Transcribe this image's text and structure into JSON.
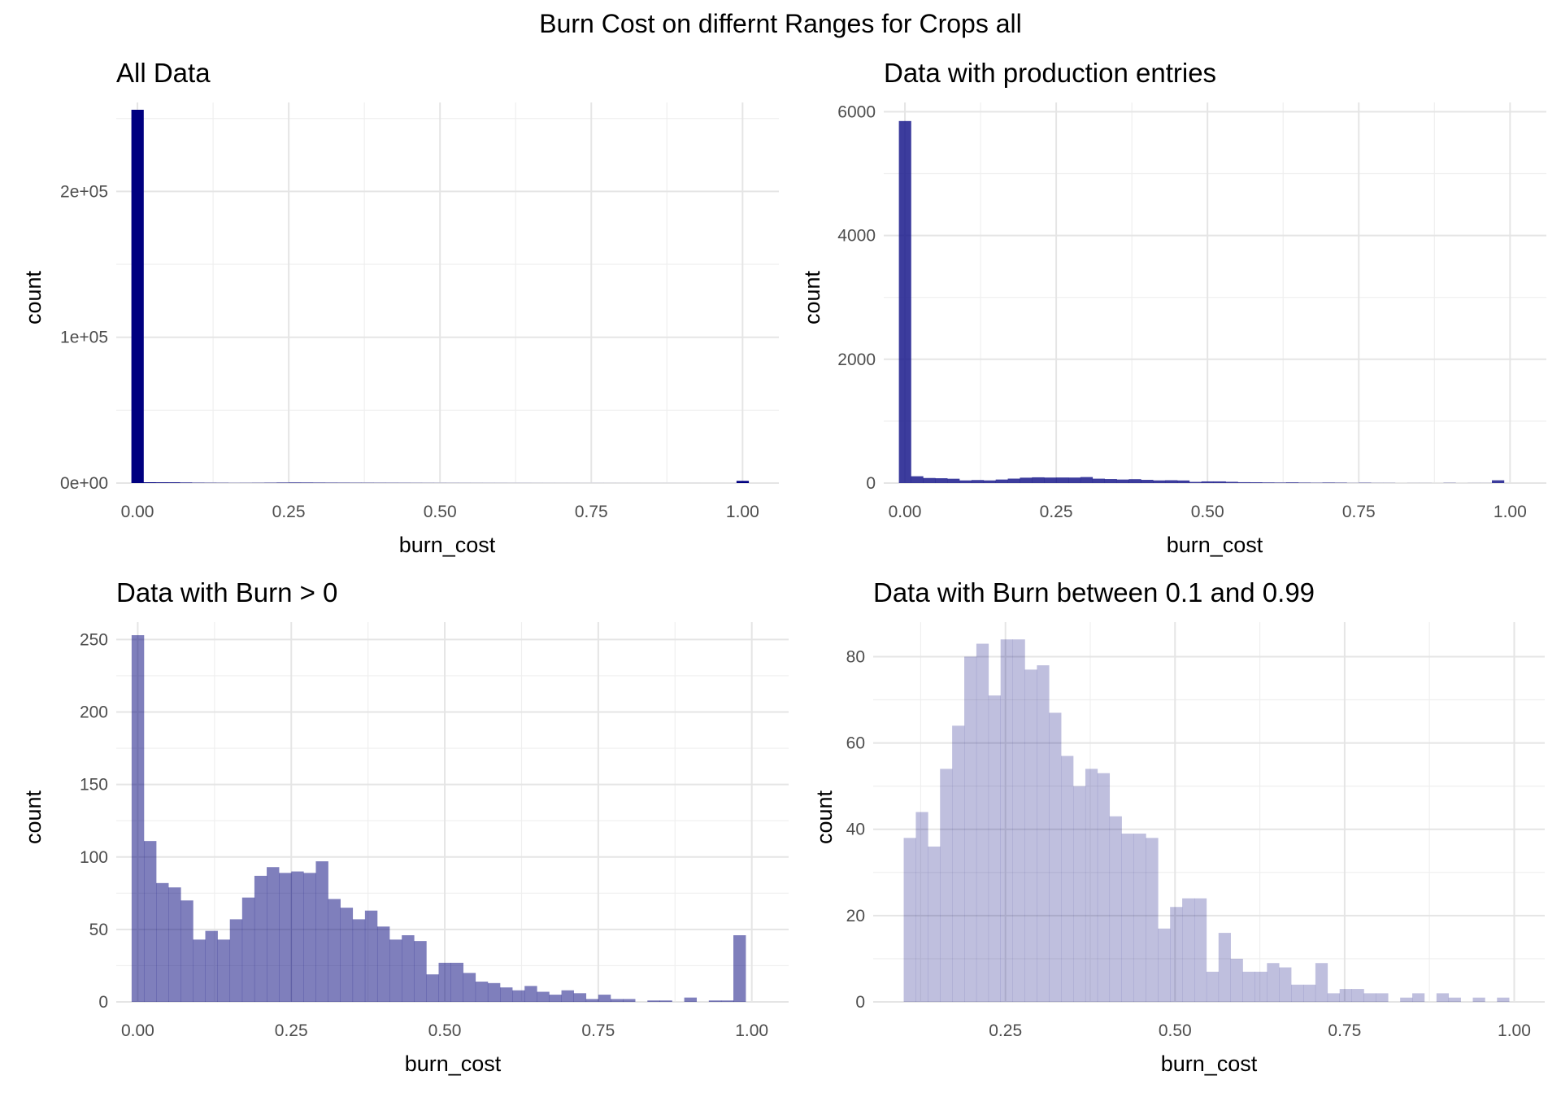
{
  "figure": {
    "title": "Burn Cost on differnt Ranges for Crops all"
  },
  "chart_data": [
    {
      "type": "bar",
      "title": "All Data",
      "xlabel": "burn_cost",
      "ylabel": "count",
      "xlim": [
        -0.035,
        1.06
      ],
      "ylim": [
        0,
        261000
      ],
      "x_ticks": [
        0,
        0.25,
        0.5,
        0.75,
        1
      ],
      "x_tick_labels": [
        "0.00",
        "0.25",
        "0.50",
        "0.75",
        "1.00"
      ],
      "y_ticks": [
        0,
        100000,
        200000
      ],
      "y_tick_labels": [
        "0e+00",
        "1e+05",
        "2e+05"
      ],
      "bin_width": 0.02,
      "bin_start": -0.01,
      "values": [
        256000,
        550,
        500,
        480,
        350,
        220,
        180,
        150,
        100,
        120,
        150,
        200,
        280,
        330,
        300,
        250,
        220,
        200,
        180,
        170,
        150,
        140,
        130,
        110,
        90,
        80,
        70,
        65,
        60,
        55,
        50,
        45,
        40,
        35,
        30,
        28,
        26,
        24,
        22,
        20,
        18,
        16,
        14,
        12,
        12,
        10,
        10,
        8,
        8,
        6,
        1500
      ],
      "color": "#000080",
      "opacity": 1.0,
      "grid": true
    },
    {
      "type": "bar",
      "title": "Data with production entries",
      "xlabel": "burn_cost",
      "ylabel": "count",
      "xlim": [
        -0.035,
        1.06
      ],
      "ylim": [
        0,
        6150
      ],
      "x_ticks": [
        0,
        0.25,
        0.5,
        0.75,
        1
      ],
      "x_tick_labels": [
        "0.00",
        "0.25",
        "0.50",
        "0.75",
        "1.00"
      ],
      "y_ticks": [
        0,
        2000,
        4000,
        6000
      ],
      "y_tick_labels": [
        "0",
        "2000",
        "4000",
        "6000"
      ],
      "bin_width": 0.02,
      "bin_start": -0.01,
      "values": [
        5850,
        110,
        82,
        78,
        70,
        43,
        49,
        43,
        57,
        72,
        87,
        93,
        89,
        90,
        89,
        97,
        71,
        65,
        57,
        63,
        52,
        43,
        46,
        42,
        19,
        27,
        27,
        20,
        14,
        13,
        10,
        8,
        11,
        7,
        5,
        8,
        6,
        2,
        5,
        2,
        2,
        0,
        1,
        1,
        0,
        3,
        0,
        1,
        1,
        45
      ],
      "color": "#1a1a8c",
      "opacity": 0.85,
      "grid": true
    },
    {
      "type": "bar",
      "title": "Data with Burn > 0",
      "xlabel": "burn_cost",
      "ylabel": "count",
      "xlim": [
        -0.035,
        1.06
      ],
      "ylim": [
        0,
        262
      ],
      "x_ticks": [
        0,
        0.25,
        0.5,
        0.75,
        1
      ],
      "x_tick_labels": [
        "0.00",
        "0.25",
        "0.50",
        "0.75",
        "1.00"
      ],
      "y_ticks": [
        0,
        50,
        100,
        150,
        200,
        250
      ],
      "y_tick_labels": [
        "0",
        "50",
        "100",
        "150",
        "200",
        "250"
      ],
      "bin_width": 0.02,
      "bin_start": -0.01,
      "values": [
        253,
        111,
        82,
        79,
        70,
        43,
        49,
        43,
        57,
        72,
        87,
        93,
        89,
        90,
        89,
        97,
        71,
        65,
        57,
        63,
        52,
        43,
        46,
        42,
        19,
        27,
        27,
        20,
        14,
        13,
        10,
        8,
        11,
        7,
        5,
        8,
        6,
        2,
        5,
        2,
        2,
        0,
        1,
        1,
        0,
        3,
        0,
        1,
        1,
        46
      ],
      "color": "#00007a",
      "opacity": 0.5,
      "grid": true
    },
    {
      "type": "bar",
      "title": "Data with Burn between 0.1 and 0.99",
      "xlabel": "burn_cost",
      "ylabel": "count",
      "xlim": [
        0.055,
        1.045
      ],
      "ylim": [
        0,
        88
      ],
      "x_ticks": [
        0.25,
        0.5,
        0.75,
        1
      ],
      "x_tick_labels": [
        "0.25",
        "0.50",
        "0.75",
        "1.00"
      ],
      "y_ticks": [
        0,
        20,
        40,
        60,
        80
      ],
      "y_tick_labels": [
        "0",
        "20",
        "40",
        "60",
        "80"
      ],
      "bin_width": 0.01785,
      "bin_start": 0.1,
      "values": [
        38,
        44,
        36,
        54,
        64,
        80,
        83,
        71,
        84,
        84,
        77,
        78,
        67,
        57,
        50,
        54,
        53,
        43,
        39,
        39,
        38,
        17,
        22,
        24,
        24,
        7,
        16,
        10,
        7,
        7,
        9,
        8,
        4,
        4,
        9,
        2,
        3,
        3,
        2,
        2,
        0,
        1,
        2,
        0,
        2,
        1,
        0,
        1,
        0,
        1
      ],
      "color": "#00007a",
      "opacity": 0.25,
      "grid": true
    }
  ]
}
